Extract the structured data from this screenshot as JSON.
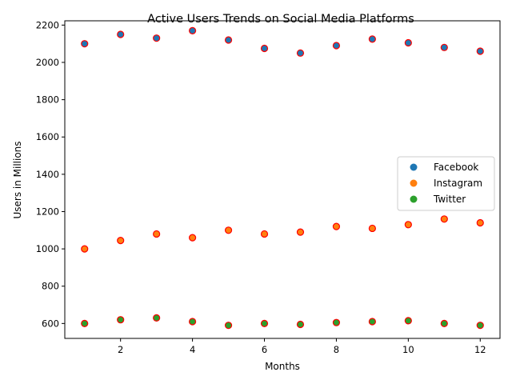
{
  "chart_data": {
    "type": "scatter",
    "title": "Active Users Trends on Social Media Platforms",
    "xlabel": "Months",
    "ylabel": "Users in Millions",
    "x": [
      1,
      2,
      3,
      4,
      5,
      6,
      7,
      8,
      9,
      10,
      11,
      12
    ],
    "xlim": [
      0.45,
      12.55
    ],
    "ylim": [
      520,
      2223
    ],
    "xticks": [
      2,
      4,
      6,
      8,
      10,
      12
    ],
    "yticks": [
      600,
      800,
      1000,
      1200,
      1400,
      1600,
      1800,
      2000,
      2200
    ],
    "grid": false,
    "legend_position": "center-right",
    "marker_edge_color": "#ff0000",
    "series": [
      {
        "name": "Facebook",
        "color": "#1f77b4",
        "values": [
          2100,
          2150,
          2130,
          2170,
          2120,
          2075,
          2050,
          2090,
          2125,
          2105,
          2080,
          2060
        ]
      },
      {
        "name": "Instagram",
        "color": "#ff7f0e",
        "values": [
          1000,
          1045,
          1080,
          1060,
          1100,
          1080,
          1090,
          1120,
          1110,
          1130,
          1160,
          1140
        ]
      },
      {
        "name": "Twitter",
        "color": "#2ca02c",
        "values": [
          600,
          620,
          630,
          610,
          590,
          600,
          595,
          605,
          610,
          615,
          600,
          590
        ]
      }
    ]
  }
}
